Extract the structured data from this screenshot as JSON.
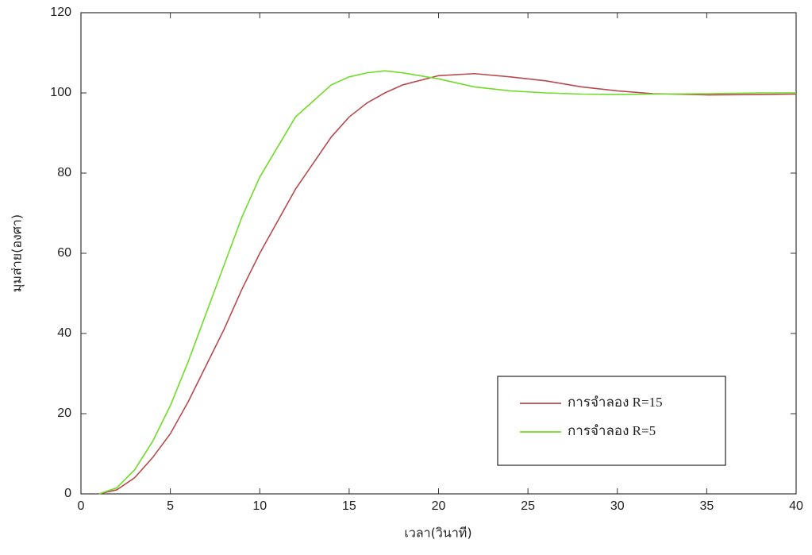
{
  "chart_data": {
    "type": "line",
    "x_label": "เวลา(วินาที)",
    "y_label": "มุมส่าย(องศา)",
    "x": [
      1,
      2,
      3,
      4,
      5,
      6,
      7,
      8,
      9,
      10,
      12,
      14,
      15,
      16,
      17,
      18,
      20,
      22,
      24,
      26,
      28,
      30,
      32,
      35,
      38,
      40
    ],
    "series": [
      {
        "name": "การจำลอง R=15",
        "color": "#b84a4e",
        "values": [
          0,
          1,
          4,
          9,
          15,
          23,
          32,
          41,
          51,
          60,
          76,
          89,
          94,
          97.5,
          100,
          102,
          104.3,
          104.8,
          104,
          103,
          101.5,
          100.5,
          99.8,
          99.5,
          99.6,
          99.7
        ]
      },
      {
        "name": "การจำลอง R=5",
        "color": "#6fdc2a",
        "values": [
          0,
          1.5,
          6,
          13,
          22,
          33,
          45,
          57,
          69,
          79,
          94,
          102,
          104,
          105,
          105.5,
          105,
          103.5,
          101.5,
          100.5,
          100,
          99.7,
          99.6,
          99.7,
          99.8,
          100,
          100
        ]
      }
    ],
    "xlim": [
      0,
      40
    ],
    "xticks": [
      0,
      5,
      10,
      15,
      20,
      25,
      30,
      35,
      40
    ],
    "ylim": [
      0,
      120
    ],
    "yticks": [
      0,
      20,
      40,
      60,
      80,
      100,
      120
    ],
    "grid": false,
    "legend": "lower right"
  }
}
